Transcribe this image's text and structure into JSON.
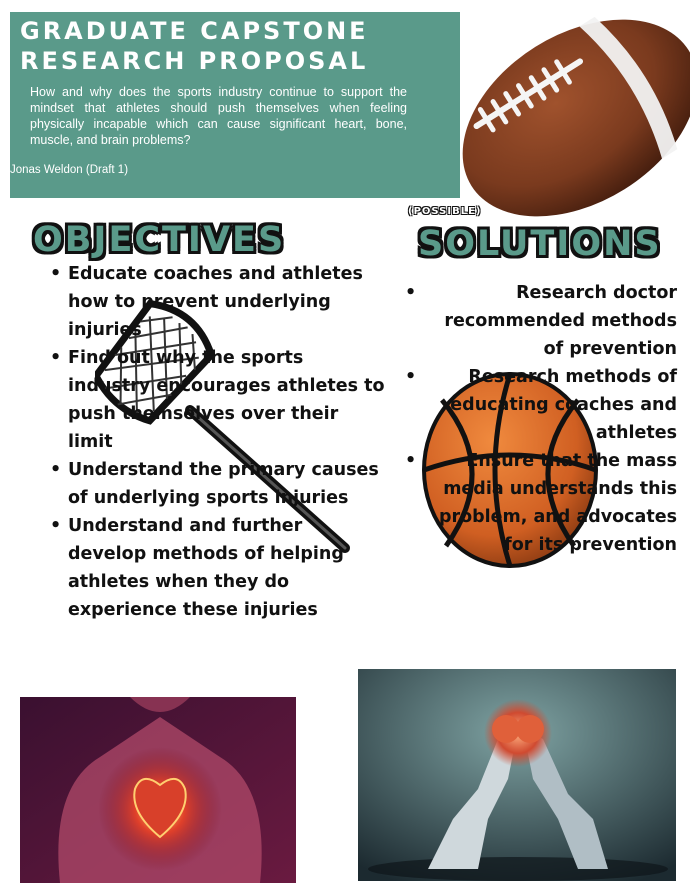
{
  "header": {
    "title_line1": "GRADUATE CAPSTONE",
    "title_line2": "RESEARCH PROPOSAL",
    "question": "How and why does the sports industry continue to support the mindset that athletes should push themselves when feeling physically incapable which can cause significant heart, bone, muscle, and brain problems?",
    "author": "Jonas Weldon (Draft 1)"
  },
  "objectives": {
    "heading": "OBJECTIVES",
    "items": [
      "Educate coaches and athletes how to prevent underlying injuries",
      "Find out why the sports industry encourages athletes to push themselves over their limit",
      "Understand the primary causes of underlying sports injuries",
      "Understand and further develop methods of helping athletes when they do experience these injuries"
    ]
  },
  "solutions": {
    "tag": "(POSSIBLE)",
    "heading": "SOLUTIONS",
    "items": [
      "Research doctor recommended methods of prevention",
      "Research methods of educating coaches and athletes",
      "Ensure that the mass media understands this problem, and advocates for its prevention"
    ]
  },
  "colors": {
    "accent": "#5a9a8a",
    "football": "#7a3a1e",
    "basketball": "#d8672a"
  },
  "icons": {
    "football": "football-image",
    "lacrosse": "lacrosse-stick-image",
    "basketball": "basketball-image",
    "heart": "human-heart-image",
    "players": "football-players-image"
  }
}
